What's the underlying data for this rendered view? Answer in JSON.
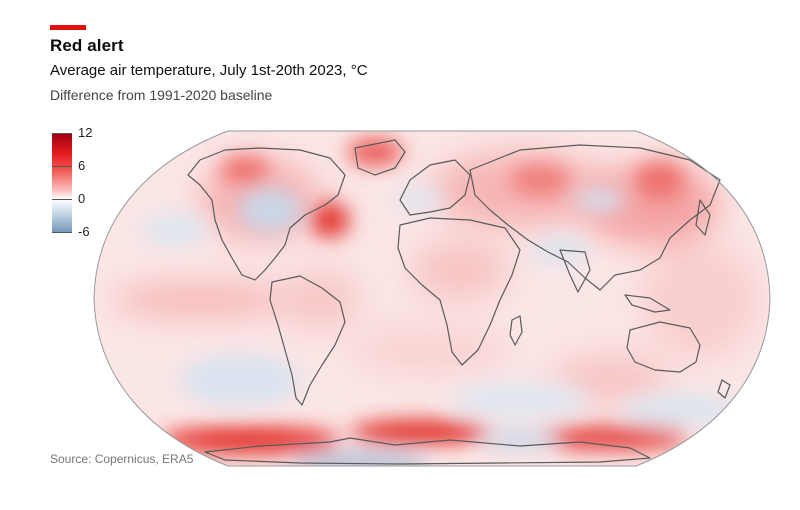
{
  "header": {
    "title": "Red alert",
    "subtitle": "Average air temperature, July 1st-20th 2023, °C",
    "subsubtitle": "Difference from 1991-2020 baseline"
  },
  "legend": {
    "labels": [
      "12",
      "6",
      "0",
      "-6"
    ],
    "colors": {
      "hot": "#e31a1c",
      "warm": "#f7a6a6",
      "neutral": "#ffffff",
      "cool": "#7094b8"
    }
  },
  "map": {
    "projection": "Robinson",
    "ocean_base_color": "#fbe4e4",
    "coastline_color": "#5a5a5a"
  },
  "footer": {
    "source": "Source: Copernicus, ERA5"
  }
}
